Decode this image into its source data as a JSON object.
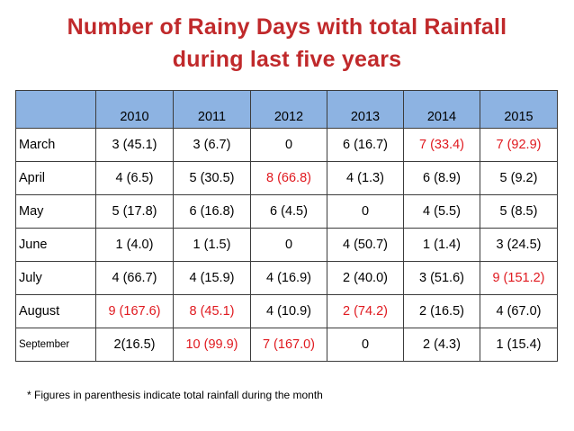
{
  "title_line1": "Number of Rainy Days with total Rainfall",
  "title_line2": "during last five years",
  "table": {
    "corner": "",
    "years": [
      "2010",
      "2011",
      "2012",
      "2013",
      "2014",
      "2015"
    ],
    "rows": [
      {
        "month": "March",
        "cells": [
          {
            "text": "3 (45.1)",
            "red": false
          },
          {
            "text": "3 (6.7)",
            "red": false
          },
          {
            "text": "0",
            "red": false
          },
          {
            "text": "6 (16.7)",
            "red": false
          },
          {
            "text": "7 (33.4)",
            "red": true
          },
          {
            "text": "7 (92.9)",
            "red": true
          }
        ]
      },
      {
        "month": "April",
        "cells": [
          {
            "text": "4 (6.5)",
            "red": false
          },
          {
            "text": "5 (30.5)",
            "red": false
          },
          {
            "text": "8 (66.8)",
            "red": true
          },
          {
            "text": "4 (1.3)",
            "red": false
          },
          {
            "text": "6 (8.9)",
            "red": false
          },
          {
            "text": "5 (9.2)",
            "red": false
          }
        ]
      },
      {
        "month": "May",
        "cells": [
          {
            "text": "5 (17.8)",
            "red": false
          },
          {
            "text": "6 (16.8)",
            "red": false
          },
          {
            "text": "6 (4.5)",
            "red": false
          },
          {
            "text": "0",
            "red": false
          },
          {
            "text": "4 (5.5)",
            "red": false
          },
          {
            "text": "5 (8.5)",
            "red": false
          }
        ]
      },
      {
        "month": "June",
        "cells": [
          {
            "text": "1 (4.0)",
            "red": false
          },
          {
            "text": "1 (1.5)",
            "red": false
          },
          {
            "text": "0",
            "red": false
          },
          {
            "text": "4 (50.7)",
            "red": false
          },
          {
            "text": "1 (1.4)",
            "red": false
          },
          {
            "text": "3 (24.5)",
            "red": false
          }
        ]
      },
      {
        "month": "July",
        "cells": [
          {
            "text": "4 (66.7)",
            "red": false
          },
          {
            "text": "4 (15.9)",
            "red": false
          },
          {
            "text": "4 (16.9)",
            "red": false
          },
          {
            "text": "2 (40.0)",
            "red": false
          },
          {
            "text": "3 (51.6)",
            "red": false
          },
          {
            "text": "9 (151.2)",
            "red": true
          }
        ]
      },
      {
        "month": "August",
        "cells": [
          {
            "text": "9 (167.6)",
            "red": true
          },
          {
            "text": "8 (45.1)",
            "red": true
          },
          {
            "text": "4 (10.9)",
            "red": false
          },
          {
            "text": "2 (74.2)",
            "red": true
          },
          {
            "text": "2 (16.5)",
            "red": false
          },
          {
            "text": "4 (67.0)",
            "red": false
          }
        ]
      },
      {
        "month": "September",
        "small": true,
        "cells": [
          {
            "text": "2(16.5)",
            "red": false
          },
          {
            "text": "10 (99.9)",
            "red": true
          },
          {
            "text": "7 (167.0)",
            "red": true
          },
          {
            "text": "0",
            "red": false
          },
          {
            "text": "2 (4.3)",
            "red": false
          },
          {
            "text": "1 (15.4)",
            "red": false
          }
        ]
      }
    ]
  },
  "footnote": "* Figures in parenthesis indicate total rainfall during the month",
  "colors": {
    "title": "#c0292b",
    "header_fill": "#8db3e2",
    "highlight": "#e0191f"
  }
}
